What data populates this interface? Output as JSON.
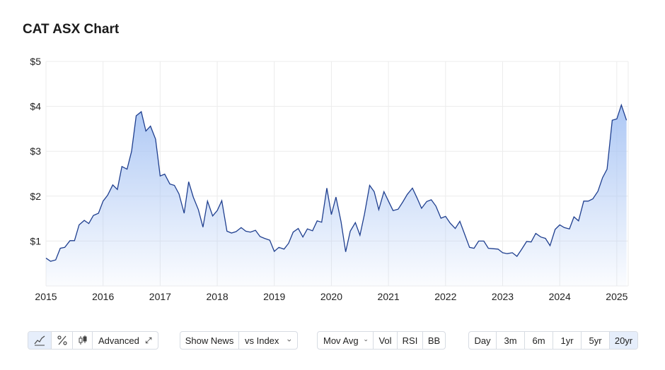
{
  "page": {
    "title": "CAT ASX Chart"
  },
  "chart_data": {
    "type": "area",
    "title": "",
    "xlabel": "",
    "ylabel": "",
    "ylim": [
      0,
      5
    ],
    "xlim": [
      2015.0,
      2025.2
    ],
    "y_ticks": [
      "$1",
      "$2",
      "$3",
      "$4",
      "$5"
    ],
    "x_ticks": [
      "2015",
      "2016",
      "2017",
      "2018",
      "2019",
      "2020",
      "2021",
      "2022",
      "2023",
      "2024",
      "2025"
    ],
    "grid": true,
    "line_color": "#1f3f8f",
    "fill_color": "#a9c5f4",
    "series": [
      {
        "x": [
          2015.0,
          2015.08,
          2015.17,
          2015.25,
          2015.33,
          2015.42,
          2015.5,
          2015.58,
          2015.67,
          2015.75,
          2015.83,
          2015.92,
          2016.0,
          2016.08,
          2016.17,
          2016.25,
          2016.33,
          2016.42,
          2016.5,
          2016.58,
          2016.67,
          2016.75,
          2016.83,
          2016.92,
          2017.0,
          2017.08,
          2017.17,
          2017.25,
          2017.33,
          2017.42,
          2017.5,
          2017.58,
          2017.67,
          2017.75,
          2017.83,
          2017.92,
          2018.0,
          2018.08,
          2018.17,
          2018.25,
          2018.33,
          2018.42,
          2018.5,
          2018.58,
          2018.67,
          2018.75,
          2018.83,
          2018.92,
          2019.0,
          2019.08,
          2019.17,
          2019.25,
          2019.33,
          2019.42,
          2019.5,
          2019.58,
          2019.67,
          2019.75,
          2019.83,
          2019.92,
          2020.0,
          2020.08,
          2020.17,
          2020.25,
          2020.33,
          2020.42,
          2020.5,
          2020.58,
          2020.67,
          2020.75,
          2020.83,
          2020.92,
          2021.0,
          2021.08,
          2021.17,
          2021.25,
          2021.33,
          2021.42,
          2021.5,
          2021.58,
          2021.67,
          2021.75,
          2021.83,
          2021.92,
          2022.0,
          2022.08,
          2022.17,
          2022.25,
          2022.33,
          2022.42,
          2022.5,
          2022.58,
          2022.67,
          2022.75,
          2022.83,
          2022.92,
          2023.0,
          2023.08,
          2023.17,
          2023.25,
          2023.33,
          2023.42,
          2023.5,
          2023.58,
          2023.67,
          2023.75,
          2023.83,
          2023.92,
          2024.0,
          2024.08,
          2024.17,
          2024.25,
          2024.33,
          2024.42,
          2024.5,
          2024.58,
          2024.67,
          2024.75,
          2024.83,
          2024.92,
          2025.0,
          2025.08,
          2025.17
        ],
        "values": [
          0.62,
          0.55,
          0.58,
          0.84,
          0.86,
          1.01,
          1.01,
          1.36,
          1.46,
          1.39,
          1.57,
          1.62,
          1.89,
          2.02,
          2.25,
          2.15,
          2.66,
          2.6,
          3.0,
          3.79,
          3.88,
          3.45,
          3.56,
          3.27,
          2.45,
          2.49,
          2.27,
          2.24,
          2.05,
          1.62,
          2.32,
          1.98,
          1.7,
          1.31,
          1.89,
          1.56,
          1.68,
          1.9,
          1.22,
          1.18,
          1.21,
          1.3,
          1.22,
          1.2,
          1.24,
          1.1,
          1.06,
          1.02,
          0.77,
          0.86,
          0.82,
          0.95,
          1.2,
          1.28,
          1.09,
          1.27,
          1.23,
          1.45,
          1.42,
          2.18,
          1.59,
          1.98,
          1.43,
          0.76,
          1.22,
          1.41,
          1.13,
          1.6,
          2.24,
          2.1,
          1.7,
          2.1,
          1.89,
          1.68,
          1.71,
          1.87,
          2.04,
          2.18,
          1.96,
          1.73,
          1.88,
          1.92,
          1.78,
          1.51,
          1.55,
          1.4,
          1.28,
          1.44,
          1.17,
          0.86,
          0.84,
          1.0,
          1.0,
          0.84,
          0.83,
          0.82,
          0.74,
          0.72,
          0.74,
          0.66,
          0.81,
          0.99,
          0.98,
          1.17,
          1.09,
          1.06,
          0.9,
          1.26,
          1.36,
          1.3,
          1.27,
          1.54,
          1.45,
          1.89,
          1.89,
          1.94,
          2.11,
          2.41,
          2.6,
          3.69,
          3.72,
          4.03,
          3.69
        ]
      }
    ]
  },
  "toolbar": {
    "chart_type_group": [
      {
        "icon": "line-chart-icon",
        "active": true
      },
      {
        "icon": "percent-icon",
        "active": false
      },
      {
        "icon": "candlestick-icon",
        "active": false
      }
    ],
    "advanced_label": "Advanced",
    "advanced_icon": "expand-icon",
    "show_news_label": "Show News",
    "vs_index_label": "vs Index",
    "indicators": {
      "mov_avg_label": "Mov Avg",
      "vol_label": "Vol",
      "rsi_label": "RSI",
      "bb_label": "BB"
    },
    "ranges": [
      {
        "label": "Day",
        "active": false
      },
      {
        "label": "3m",
        "active": false
      },
      {
        "label": "6m",
        "active": false
      },
      {
        "label": "1yr",
        "active": false
      },
      {
        "label": "5yr",
        "active": false
      },
      {
        "label": "20yr",
        "active": true
      }
    ]
  }
}
